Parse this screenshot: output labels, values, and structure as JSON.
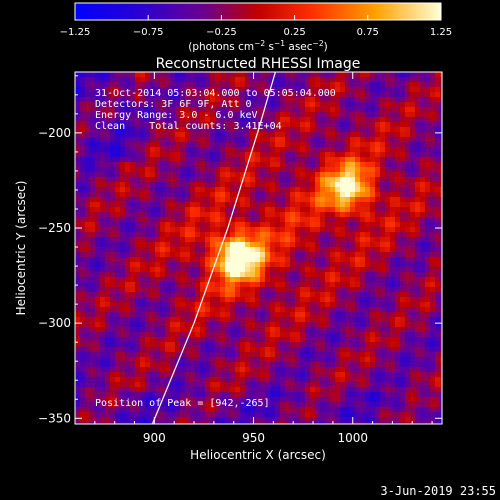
{
  "chart_data": {
    "type": "heatmap",
    "title": "Reconstructed RHESSI Image",
    "xlabel": "Heliocentric X (arcsec)",
    "ylabel": "Heliocentric Y (arcsec)",
    "xlim": [
      860,
      1045
    ],
    "ylim": [
      -353,
      -168
    ],
    "x_ticks": [
      900,
      950,
      1000
    ],
    "y_ticks": [
      -200,
      -250,
      -300,
      -350
    ],
    "colorbar": {
      "label_main": "(photons cm",
      "label_exp1": "−2",
      "label_mid": " s",
      "label_exp2": "−1",
      "label_end": " asec",
      "label_exp3": "−2",
      "label_close": ")",
      "range": [
        -1.25,
        1.25
      ],
      "tick_values": [
        -1.25,
        -0.75,
        -0.25,
        0.25,
        0.75,
        1.25
      ],
      "tick_labels": [
        "−1.25",
        "−0.75",
        "−0.25",
        "0.25",
        "0.75",
        "1.25"
      ]
    },
    "annotations": {
      "time_range": "31-Oct-2014 05:03:04.000 to 05:05:04.000",
      "detectors": "Detectors: 3F 6F 9F, Att 0",
      "energy": "Energy Range: 3.0 - 6.0 keV",
      "clean": "Clean    Total counts: 3.41E+04",
      "peak": "Position of Peak = [942,-265]"
    },
    "sources": [
      {
        "x": 942,
        "y": -265,
        "intensity": 1.25
      },
      {
        "x": 998,
        "y": -229,
        "intensity": 1.0
      }
    ],
    "limb_curve": [
      [
        899,
        -353
      ],
      [
        920,
        -300
      ],
      [
        937,
        -250
      ],
      [
        952,
        -200
      ],
      [
        961,
        -168
      ]
    ]
  },
  "footer_date": "3-Jun-2019 23:55"
}
